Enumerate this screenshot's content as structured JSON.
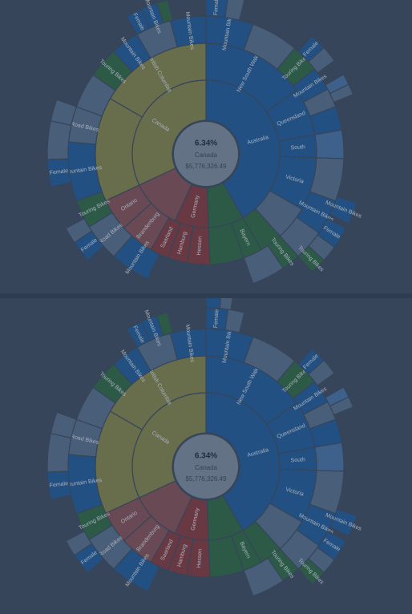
{
  "colors": {
    "australia": "#1f5fa0",
    "australia_light": "#4a79b0",
    "canada": "#8a8c4e",
    "canada_light": "#9c9a5a",
    "germany": "#8a3b40",
    "germany_light": "#8d5358",
    "green": "#2f6e45",
    "pale": "#5b7393",
    "background": "#3e4d61"
  },
  "center": {
    "percent": "6.34%",
    "label": "Canada",
    "value": "$5,776,326.49"
  },
  "chart_data": {
    "type": "sunburst",
    "center_percent": "6.34%",
    "center_label": "Canada",
    "center_value": "$5,776,326.49",
    "rings": [
      {
        "level": 1,
        "segments": [
          {
            "label": "Australia",
            "start": 0,
            "end": 150,
            "color": "australia"
          },
          {
            "label": "",
            "start": 150,
            "end": 178,
            "color": "green"
          },
          {
            "label": "Germany",
            "start": 178,
            "end": 205,
            "color": "germany"
          },
          {
            "label": "",
            "start": 205,
            "end": 245,
            "color": "germany_light"
          },
          {
            "label": "Canada",
            "start": 245,
            "end": 360,
            "color": "canada"
          }
        ]
      },
      {
        "level": 2,
        "segments": [
          {
            "label": "New South Wales",
            "start": 0,
            "end": 55,
            "color": "australia"
          },
          {
            "label": "Queensland",
            "start": 55,
            "end": 80,
            "color": "australia"
          },
          {
            "label": "South",
            "start": 80,
            "end": 92,
            "color": "australia"
          },
          {
            "label": "Victoria",
            "start": 92,
            "end": 120,
            "color": "australia"
          },
          {
            "label": "",
            "start": 120,
            "end": 138,
            "color": "pale"
          },
          {
            "label": "",
            "start": 138,
            "end": 150,
            "color": "green"
          },
          {
            "label": "Bayern",
            "start": 150,
            "end": 160,
            "color": "green"
          },
          {
            "label": "",
            "start": 160,
            "end": 178,
            "color": "green"
          },
          {
            "label": "Hessen",
            "start": 178,
            "end": 190,
            "color": "germany"
          },
          {
            "label": "Hamburg",
            "start": 190,
            "end": 200,
            "color": "germany"
          },
          {
            "label": "Saarland",
            "start": 200,
            "end": 210,
            "color": "germany"
          },
          {
            "label": "Brandenburg",
            "start": 210,
            "end": 228,
            "color": "germany_light"
          },
          {
            "label": "Ontario",
            "start": 228,
            "end": 245,
            "color": "germany_light"
          },
          {
            "label": "",
            "start": 245,
            "end": 300,
            "color": "canada"
          },
          {
            "label": "British Columbia",
            "start": 300,
            "end": 360,
            "color": "canada"
          }
        ]
      },
      {
        "level": 3,
        "segments": [
          {
            "label": "Mountain Bikes",
            "start": 0,
            "end": 20,
            "color": "australia"
          },
          {
            "label": "",
            "start": 20,
            "end": 40,
            "color": "pale"
          },
          {
            "label": "Touring Bikes",
            "start": 40,
            "end": 52,
            "color": "green"
          },
          {
            "label": "Mountain Bikes",
            "start": 52,
            "end": 62,
            "color": "australia"
          },
          {
            "label": "",
            "start": 62,
            "end": 70,
            "color": "pale"
          },
          {
            "label": "",
            "start": 70,
            "end": 80,
            "color": "australia"
          },
          {
            "label": "",
            "start": 80,
            "end": 92,
            "color": "australia_light"
          },
          {
            "label": "",
            "start": 92,
            "end": 110,
            "color": "pale"
          },
          {
            "label": "Mountain Bikes",
            "start": 110,
            "end": 125,
            "color": "australia"
          },
          {
            "label": "",
            "start": 125,
            "end": 138,
            "color": "pale"
          },
          {
            "label": "Touring Bikes",
            "start": 138,
            "end": 146,
            "color": "green"
          },
          {
            "label": "",
            "start": 146,
            "end": 160,
            "color": "pale"
          },
          {
            "label": "Mountain Bikes",
            "start": 205,
            "end": 222,
            "color": "australia"
          },
          {
            "label": "Road Bikes",
            "start": 222,
            "end": 238,
            "color": "pale"
          },
          {
            "label": "Touring Bikes",
            "start": 238,
            "end": 250,
            "color": "green"
          },
          {
            "label": "Mountain Bikes",
            "start": 250,
            "end": 275,
            "color": "australia"
          },
          {
            "label": "Road Bikes",
            "start": 275,
            "end": 290,
            "color": "pale"
          },
          {
            "label": "",
            "start": 290,
            "end": 305,
            "color": "pale"
          },
          {
            "label": "Touring Bikes",
            "start": 305,
            "end": 318,
            "color": "green"
          },
          {
            "label": "Mountain Bikes",
            "start": 318,
            "end": 330,
            "color": "australia"
          },
          {
            "label": "",
            "start": 330,
            "end": 345,
            "color": "pale"
          },
          {
            "label": "Mountain Bikes",
            "start": 345,
            "end": 360,
            "color": "australia"
          }
        ]
      },
      {
        "level": 4,
        "segments": [
          {
            "label": "Female",
            "start": 0,
            "end": 8,
            "color": "australia"
          },
          {
            "label": "",
            "start": 8,
            "end": 14,
            "color": "pale"
          },
          {
            "label": "Female",
            "start": 42,
            "end": 48,
            "color": "australia"
          },
          {
            "label": "",
            "start": 48,
            "end": 54,
            "color": "pale"
          },
          {
            "label": "Female",
            "start": 60,
            "end": 64,
            "color": "australia_light"
          },
          {
            "label": "",
            "start": 64,
            "end": 68,
            "color": "pale"
          },
          {
            "label": "Mountain Bikes",
            "start": 108,
            "end": 116,
            "color": "australia"
          },
          {
            "label": "Female",
            "start": 118,
            "end": 126,
            "color": "australia"
          },
          {
            "label": "",
            "start": 126,
            "end": 132,
            "color": "pale"
          },
          {
            "label": "Touring Bikes",
            "start": 132,
            "end": 138,
            "color": "green"
          },
          {
            "label": "Female",
            "start": 228,
            "end": 236,
            "color": "australia"
          },
          {
            "label": "",
            "start": 236,
            "end": 242,
            "color": "pale"
          },
          {
            "label": "Female",
            "start": 258,
            "end": 268,
            "color": "australia"
          },
          {
            "label": "",
            "start": 268,
            "end": 282,
            "color": "pale"
          },
          {
            "label": "",
            "start": 282,
            "end": 290,
            "color": "pale"
          },
          {
            "label": "Female",
            "start": 330,
            "end": 336,
            "color": "australia"
          },
          {
            "label": "Mountain Bikes",
            "start": 336,
            "end": 342,
            "color": "australia"
          },
          {
            "label": "",
            "start": 342,
            "end": 346,
            "color": "green"
          }
        ]
      },
      {
        "level": 5,
        "segments": [
          {
            "label": "Female",
            "start": 0,
            "end": 5,
            "color": "australia"
          },
          {
            "label": "",
            "start": 5,
            "end": 9,
            "color": "pale"
          }
        ]
      }
    ]
  }
}
